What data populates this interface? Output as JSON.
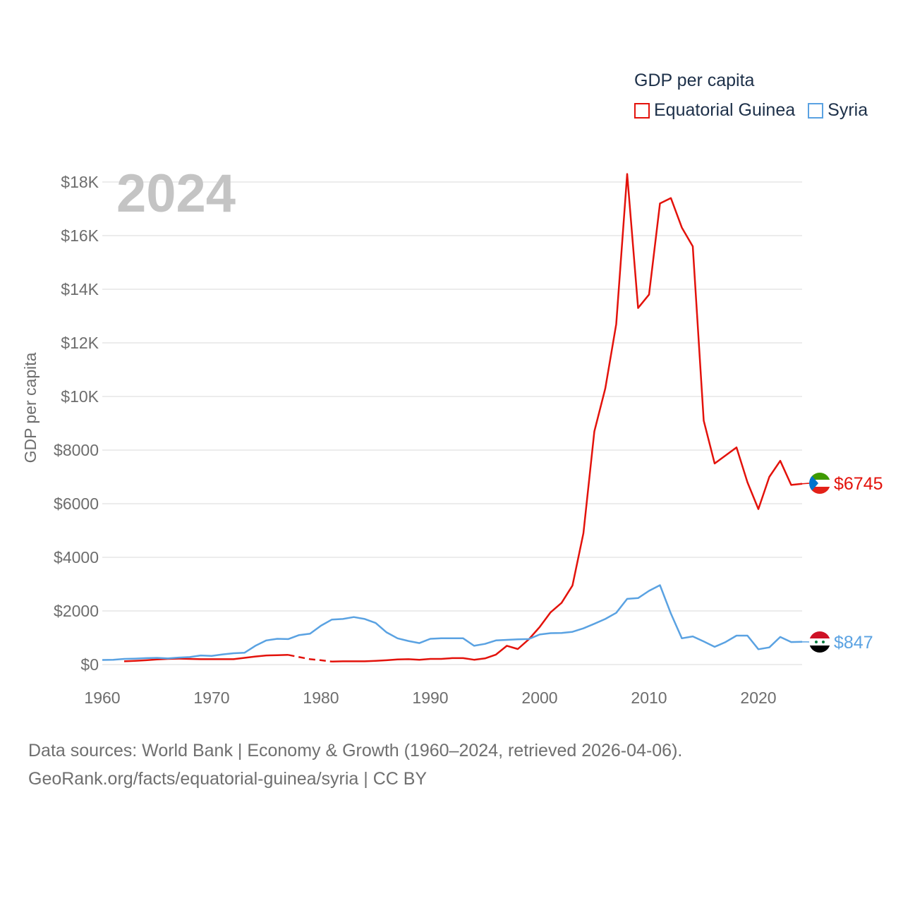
{
  "legend": {
    "title": "GDP per capita",
    "items": [
      {
        "label": "Equatorial Guinea",
        "color": "#e3120b"
      },
      {
        "label": "Syria",
        "color": "#5aa2e2"
      }
    ]
  },
  "footer": {
    "line1": "Data sources: World Bank | Economy & Growth (1960–2024, retrieved 2026-04-06).",
    "line2": "GeoRank.org/facts/equatorial-guinea/syria | CC BY"
  },
  "chart_data": {
    "type": "line",
    "title": "GDP per capita",
    "year_label": "2024",
    "xlabel": "",
    "ylabel": "GDP per capita",
    "xlim": [
      1960,
      2024
    ],
    "ylim": [
      0,
      18000
    ],
    "x_ticks": [
      1960,
      1970,
      1980,
      1990,
      2000,
      2010,
      2020
    ],
    "y_ticks": [
      0,
      2000,
      4000,
      6000,
      8000,
      10000,
      12000,
      14000,
      16000,
      18000
    ],
    "y_tick_labels": [
      "$0",
      "$2000",
      "$4000",
      "$6000",
      "$8000",
      "$10K",
      "$12K",
      "$14K",
      "$16K",
      "$18K"
    ],
    "grid": true,
    "legend_position": "top-right",
    "series": [
      {
        "name": "Equatorial Guinea",
        "color": "#e3120b",
        "end_label": "$6745",
        "flag_icon": "equatorial-guinea-flag-icon",
        "x": [
          1962,
          1963,
          1964,
          1965,
          1966,
          1967,
          1968,
          1969,
          1970,
          1971,
          1972,
          1973,
          1974,
          1975,
          1976,
          1977,
          1978,
          1979,
          1980,
          1981,
          1982,
          1983,
          1984,
          1985,
          1986,
          1987,
          1988,
          1989,
          1990,
          1991,
          1992,
          1993,
          1994,
          1995,
          1996,
          1997,
          1998,
          1999,
          2000,
          2001,
          2002,
          2003,
          2004,
          2005,
          2006,
          2007,
          2008,
          2009,
          2010,
          2011,
          2012,
          2013,
          2014,
          2015,
          2016,
          2017,
          2018,
          2019,
          2020,
          2021,
          2022,
          2023,
          2024
        ],
        "values": [
          120,
          140,
          160,
          190,
          210,
          220,
          210,
          200,
          200,
          200,
          200,
          250,
          300,
          340,
          350,
          360,
          280,
          200,
          160,
          110,
          120,
          120,
          120,
          140,
          160,
          190,
          200,
          180,
          210,
          210,
          240,
          240,
          180,
          230,
          370,
          700,
          580,
          940,
          1400,
          1950,
          2300,
          2950,
          4900,
          8700,
          10300,
          12700,
          18300,
          13300,
          13800,
          17200,
          17400,
          16300,
          15600,
          9100,
          7500,
          7800,
          8100,
          6800,
          5800,
          7000,
          7600,
          6700,
          6745
        ],
        "gap_years": [
          1978,
          1979,
          1980
        ]
      },
      {
        "name": "Syria",
        "color": "#5aa2e2",
        "end_label": "$847",
        "flag_icon": "syria-flag-icon",
        "x": [
          1960,
          1961,
          1962,
          1963,
          1964,
          1965,
          1966,
          1967,
          1968,
          1969,
          1970,
          1971,
          1972,
          1973,
          1974,
          1975,
          1976,
          1977,
          1978,
          1979,
          1980,
          1981,
          1982,
          1983,
          1984,
          1985,
          1986,
          1987,
          1988,
          1989,
          1990,
          1991,
          1992,
          1993,
          1994,
          1995,
          1996,
          1997,
          1998,
          1999,
          2000,
          2001,
          2002,
          2003,
          2004,
          2005,
          2006,
          2007,
          2008,
          2009,
          2010,
          2011,
          2012,
          2013,
          2014,
          2015,
          2016,
          2017,
          2018,
          2019,
          2020,
          2021,
          2022,
          2023,
          2024
        ],
        "values": [
          170,
          180,
          210,
          220,
          240,
          250,
          230,
          260,
          280,
          340,
          320,
          380,
          420,
          440,
          700,
          900,
          960,
          950,
          1100,
          1150,
          1450,
          1680,
          1700,
          1770,
          1700,
          1550,
          1200,
          980,
          880,
          800,
          960,
          980,
          980,
          980,
          700,
          770,
          900,
          920,
          940,
          950,
          1120,
          1170,
          1180,
          1220,
          1350,
          1520,
          1700,
          1930,
          2450,
          2480,
          2750,
          2960,
          1900,
          980,
          1050,
          860,
          660,
          840,
          1080,
          1080,
          570,
          640,
          1030,
          840,
          847
        ]
      }
    ]
  }
}
